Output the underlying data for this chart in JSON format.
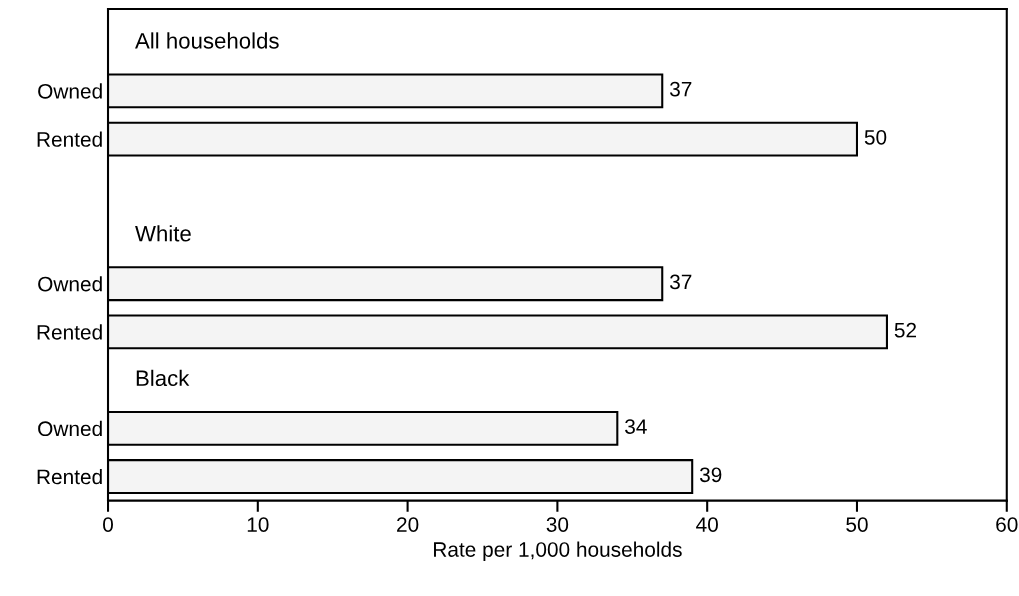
{
  "chart_data": {
    "type": "bar",
    "orientation": "horizontal",
    "categories": [
      "All households",
      "Owned",
      "Rented",
      null,
      "White",
      "Owned",
      "Rented",
      "Black",
      "Owned",
      "Rented"
    ],
    "values": [
      null,
      37,
      50,
      null,
      null,
      37,
      52,
      null,
      34,
      39
    ],
    "color": "#f4f4f4",
    "data_labels": true,
    "xlabel": "Rate per 1,000 households",
    "xlim": [
      0,
      60
    ],
    "xticks": [
      0,
      10,
      20,
      30,
      40,
      50,
      60
    ],
    "grid": false,
    "legend": false
  }
}
